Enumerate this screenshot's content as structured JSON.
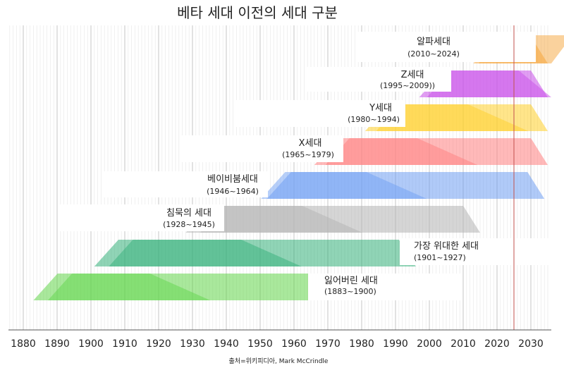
{
  "chart_data": {
    "type": "area",
    "title": "베타 세대 이전의 세대 구분",
    "source": "출처=위키피디아, Mark McCrindle",
    "xlim": [
      1876,
      2035
    ],
    "x_ticks": [
      1880,
      1890,
      1900,
      1910,
      1920,
      1930,
      1940,
      1950,
      1960,
      1970,
      1980,
      1990,
      2000,
      2010,
      2020,
      2030
    ],
    "reference_year": 2025,
    "grid": true,
    "series": [
      {
        "name": "알파세대",
        "range": "(2010~2024)",
        "color": "#f6a53c",
        "start": 2010,
        "end": 2024,
        "shape_start": 2013,
        "shape_end": 2035
      },
      {
        "name": "Z세대",
        "range": "(1995~2009))",
        "color": "#c94fe9",
        "start": 1995,
        "end": 2009,
        "shape_start": 1997,
        "shape_end": 2035
      },
      {
        "name": "Y세대",
        "range": "(1980~1994)",
        "color": "#ffd02a",
        "start": 1980,
        "end": 1994,
        "shape_start": 1981,
        "shape_end": 2035
      },
      {
        "name": "X세대",
        "range": "(1965~1979)",
        "color": "#ff7f80",
        "start": 1965,
        "end": 1979,
        "shape_start": 1966,
        "shape_end": 2035
      },
      {
        "name": "베이비붐세대",
        "range": "(1946~1964)",
        "color": "#6f9ff3",
        "start": 1946,
        "end": 1964,
        "shape_start": 1952,
        "shape_end": 2034
      },
      {
        "name": "침묵의 세대",
        "range": "(1928~1945)",
        "color": "#b3b3b3",
        "start": 1928,
        "end": 1945,
        "shape_start": 1928,
        "shape_end": 2015
      },
      {
        "name": "가장 위대한 세대",
        "range": "(1901~1927)",
        "color": "#34b07a",
        "start": 1901,
        "end": 1927,
        "shape_start": 1901,
        "shape_end": 1996
      },
      {
        "name": "잃어버린 세대",
        "range": "(1883~1900)",
        "color": "#62d64b",
        "start": 1883,
        "end": 1900,
        "shape_start": 1883,
        "shape_end": 1970
      }
    ]
  }
}
